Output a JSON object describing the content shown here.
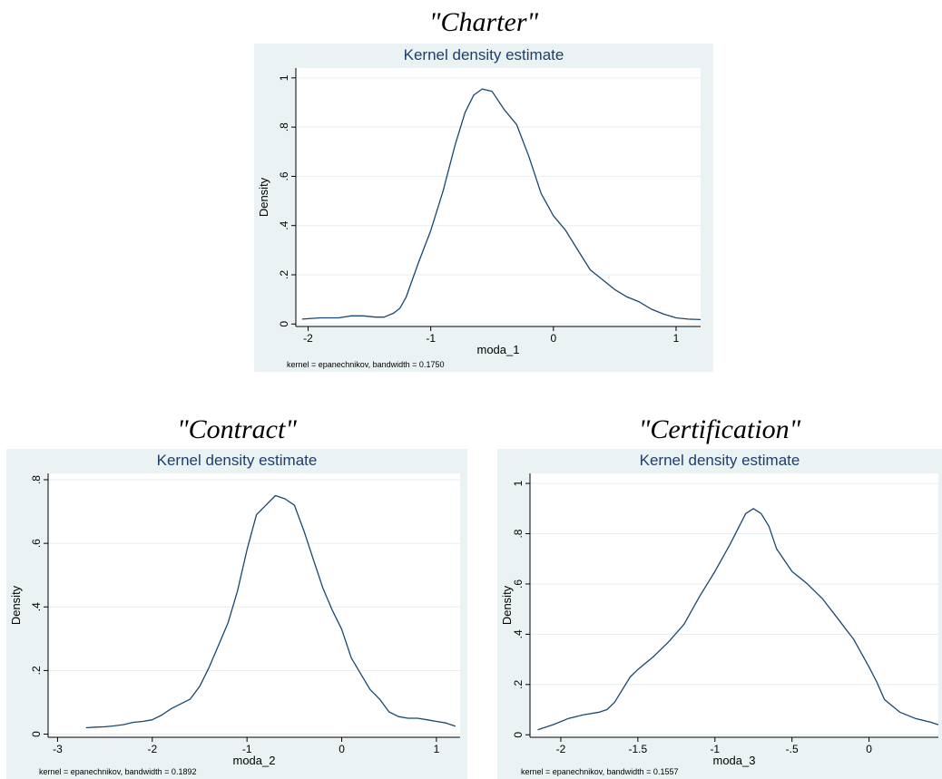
{
  "chart_data": [
    {
      "type": "line",
      "figure_title": "\"Charter\"",
      "title": "Kernel density estimate",
      "xlabel": "moda_1",
      "ylabel": "Density",
      "note": "kernel = epanechnikov, bandwidth = 0.1750",
      "xlim": [
        -2.1,
        1.2
      ],
      "ylim": [
        -0.01,
        1.04
      ],
      "xticks": [
        -2,
        -1,
        0,
        1
      ],
      "xtick_labels": [
        "-2",
        "-1",
        "0",
        "1"
      ],
      "yticks": [
        0,
        0.2,
        0.4,
        0.6,
        0.8,
        1
      ],
      "ytick_labels": [
        "0",
        ".2",
        ".4",
        ".6",
        ".8",
        "1"
      ],
      "grid": true,
      "line_color": "#1a476f",
      "background": "#eaf2f3",
      "series": [
        {
          "x": [
            -2.05,
            -1.9,
            -1.75,
            -1.65,
            -1.55,
            -1.45,
            -1.38,
            -1.3,
            -1.25,
            -1.2,
            -1.1,
            -1.0,
            -0.9,
            -0.8,
            -0.72,
            -0.65,
            -0.58,
            -0.5,
            -0.4,
            -0.3,
            -0.2,
            -0.1,
            0.0,
            0.1,
            0.2,
            0.3,
            0.4,
            0.5,
            0.6,
            0.7,
            0.8,
            0.9,
            1.0,
            1.1,
            1.2
          ],
          "y": [
            0.02,
            0.025,
            0.025,
            0.033,
            0.033,
            0.028,
            0.028,
            0.045,
            0.065,
            0.11,
            0.25,
            0.38,
            0.54,
            0.73,
            0.86,
            0.93,
            0.955,
            0.945,
            0.87,
            0.81,
            0.68,
            0.53,
            0.44,
            0.38,
            0.3,
            0.22,
            0.18,
            0.14,
            0.11,
            0.09,
            0.06,
            0.04,
            0.025,
            0.02,
            0.018
          ]
        }
      ]
    },
    {
      "type": "line",
      "figure_title": "\"Contract\"",
      "title": "Kernel density estimate",
      "xlabel": "moda_2",
      "ylabel": "Density",
      "note": "kernel = epanechnikov, bandwidth = 0.1892",
      "xlim": [
        -3.1,
        1.25
      ],
      "ylim": [
        -0.01,
        0.82
      ],
      "xticks": [
        -3,
        -2,
        -1,
        0,
        1
      ],
      "xtick_labels": [
        "-3",
        "-2",
        "-1",
        "0",
        "1"
      ],
      "yticks": [
        0,
        0.2,
        0.4,
        0.6,
        0.8
      ],
      "ytick_labels": [
        "0",
        ".2",
        ".4",
        ".6",
        ".8"
      ],
      "grid": true,
      "line_color": "#1a476f",
      "background": "#eaf2f3",
      "series": [
        {
          "x": [
            -2.7,
            -2.6,
            -2.5,
            -2.4,
            -2.3,
            -2.2,
            -2.1,
            -2.0,
            -1.9,
            -1.8,
            -1.7,
            -1.6,
            -1.5,
            -1.4,
            -1.3,
            -1.2,
            -1.1,
            -1.0,
            -0.9,
            -0.8,
            -0.7,
            -0.6,
            -0.5,
            -0.4,
            -0.3,
            -0.2,
            -0.1,
            0.0,
            0.1,
            0.2,
            0.3,
            0.4,
            0.5,
            0.6,
            0.7,
            0.8,
            0.9,
            1.0,
            1.1,
            1.2
          ],
          "y": [
            0.02,
            0.022,
            0.023,
            0.026,
            0.03,
            0.037,
            0.04,
            0.045,
            0.06,
            0.08,
            0.095,
            0.11,
            0.15,
            0.21,
            0.28,
            0.35,
            0.45,
            0.58,
            0.69,
            0.72,
            0.75,
            0.74,
            0.72,
            0.64,
            0.55,
            0.46,
            0.39,
            0.33,
            0.24,
            0.19,
            0.14,
            0.11,
            0.07,
            0.055,
            0.05,
            0.05,
            0.045,
            0.04,
            0.035,
            0.025
          ]
        }
      ]
    },
    {
      "type": "line",
      "figure_title": "\"Certification\"",
      "title": "Kernel density estimate",
      "xlabel": "moda_3",
      "ylabel": "Density",
      "note": "kernel = epanechnikov, bandwidth = 0.1557",
      "xlim": [
        -2.2,
        0.45
      ],
      "ylim": [
        -0.01,
        1.04
      ],
      "xticks": [
        -2,
        -1.5,
        -1,
        -0.5,
        0
      ],
      "xtick_labels": [
        "-2",
        "-1.5",
        "-1",
        "-.5",
        "0"
      ],
      "yticks": [
        0,
        0.2,
        0.4,
        0.6,
        0.8,
        1
      ],
      "ytick_labels": [
        "0",
        ".2",
        ".4",
        ".6",
        ".8",
        "1"
      ],
      "grid": true,
      "line_color": "#1a476f",
      "background": "#eaf2f3",
      "series": [
        {
          "x": [
            -2.15,
            -2.05,
            -1.95,
            -1.85,
            -1.75,
            -1.7,
            -1.65,
            -1.6,
            -1.55,
            -1.5,
            -1.4,
            -1.3,
            -1.2,
            -1.1,
            -1.0,
            -0.9,
            -0.8,
            -0.75,
            -0.7,
            -0.65,
            -0.6,
            -0.5,
            -0.4,
            -0.3,
            -0.2,
            -0.1,
            0.0,
            0.05,
            0.1,
            0.2,
            0.3,
            0.4,
            0.45
          ],
          "y": [
            0.02,
            0.04,
            0.065,
            0.08,
            0.09,
            0.1,
            0.13,
            0.18,
            0.23,
            0.26,
            0.31,
            0.37,
            0.44,
            0.55,
            0.65,
            0.76,
            0.88,
            0.9,
            0.88,
            0.83,
            0.74,
            0.65,
            0.6,
            0.54,
            0.46,
            0.38,
            0.27,
            0.21,
            0.14,
            0.09,
            0.065,
            0.05,
            0.04
          ]
        }
      ]
    }
  ]
}
